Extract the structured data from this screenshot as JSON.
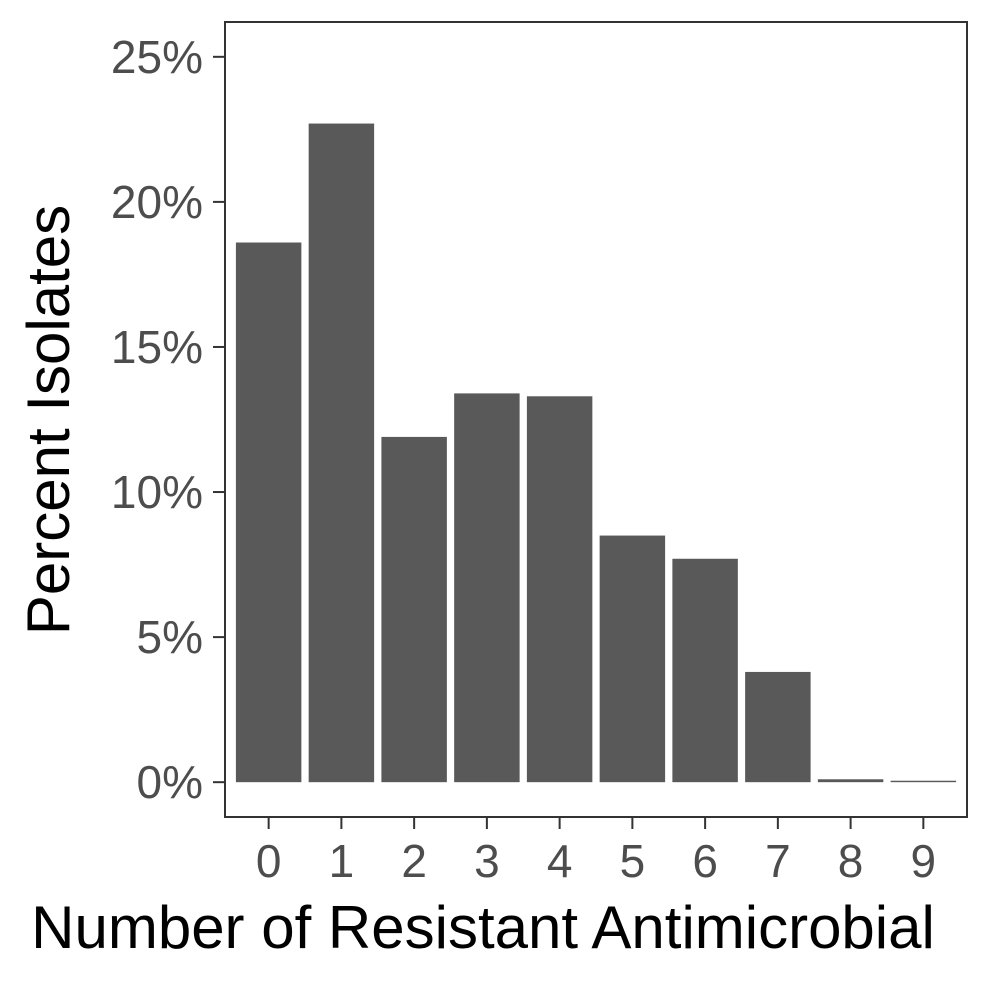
{
  "chart_data": {
    "type": "bar",
    "categories": [
      "0",
      "1",
      "2",
      "3",
      "4",
      "5",
      "6",
      "7",
      "8",
      "9"
    ],
    "values": [
      18.6,
      22.7,
      11.9,
      13.4,
      13.3,
      8.5,
      7.7,
      3.8,
      0.1,
      0.05
    ],
    "title": "",
    "xlabel": "Number of Resistant Antimicrobial",
    "ylabel": "Percent Isolates",
    "ylim": [
      -1.2,
      26.2
    ],
    "yticks": [
      0,
      5,
      10,
      15,
      20,
      25
    ],
    "ytick_labels": [
      "0%",
      "5%",
      "10%",
      "15%",
      "20%",
      "25%"
    ],
    "grid": false,
    "legend": "none",
    "bar_color": "#595959",
    "panel_border_color": "#333333",
    "tick_color": "#333333",
    "tick_label_color": "#4d4d4d"
  }
}
